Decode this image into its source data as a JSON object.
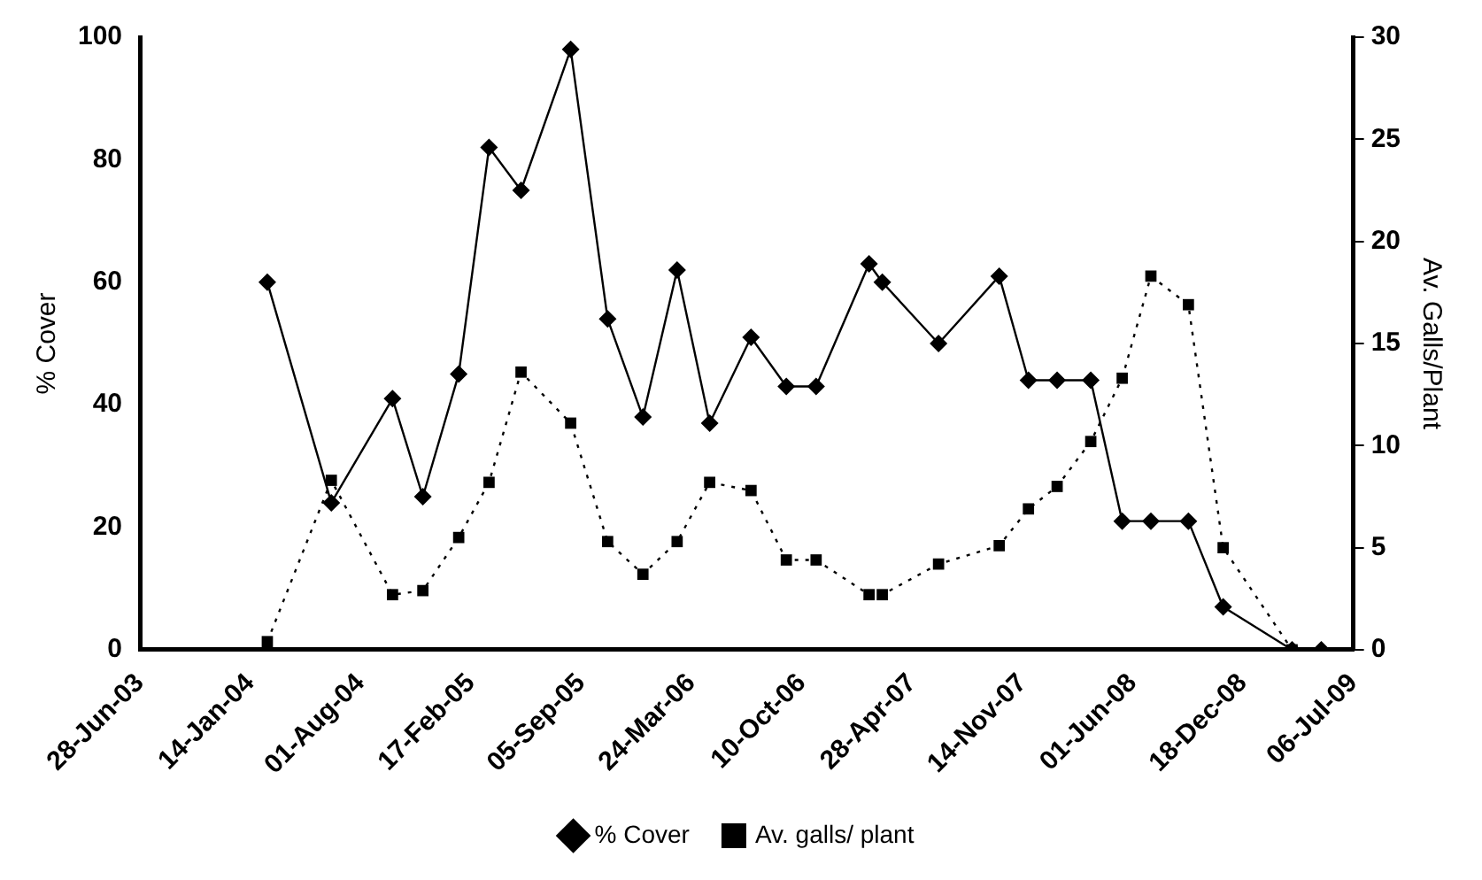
{
  "chart_data": {
    "type": "line",
    "ylabel": "% Cover",
    "y2label": "Av. Galls/Plant",
    "x": [
      "2004-02-14",
      "2004-06-09",
      "2004-09-28",
      "2004-11-22",
      "2005-01-26",
      "2005-03-22",
      "2005-05-19",
      "2005-08-17",
      "2005-10-23",
      "2005-12-26",
      "2006-02-26",
      "2006-04-26",
      "2006-07-10",
      "2006-09-12",
      "2006-11-05",
      "2007-02-09",
      "2007-03-05",
      "2007-06-15",
      "2007-10-03",
      "2007-11-25",
      "2008-01-16",
      "2008-03-17",
      "2008-05-13",
      "2008-07-04",
      "2008-09-10",
      "2008-11-12",
      "2009-03-17",
      "2009-05-09"
    ],
    "series": [
      {
        "name": "% Cover",
        "color": "#000000",
        "marker": "diamond",
        "line_style": "solid",
        "values": [
          60,
          24,
          41,
          25,
          45,
          82,
          75,
          98,
          54,
          38,
          62,
          37,
          51,
          43,
          43,
          63,
          60,
          50,
          61,
          44,
          44,
          44,
          21,
          21,
          21,
          7,
          0,
          0
        ]
      },
      {
        "name": "Av. galls/ plant",
        "color": "#000000",
        "marker": "square",
        "line_style": "dotted",
        "axis": "y2",
        "values": [
          0.4,
          8.3,
          2.7,
          2.9,
          5.5,
          8.2,
          13.6,
          11.1,
          5.3,
          3.7,
          5.3,
          8.2,
          7.8,
          4.4,
          4.4,
          2.7,
          2.7,
          4.2,
          5.1,
          6.9,
          8.0,
          10.2,
          13.3,
          18.3,
          16.9,
          5.0,
          0,
          null
        ]
      }
    ],
    "xlim": [
      "2003-06-28",
      "2009-07-06"
    ],
    "xticks": [
      {
        "value": "2003-06-28",
        "label": "28-Jun-03"
      },
      {
        "value": "2004-01-14",
        "label": "14-Jan-04"
      },
      {
        "value": "2004-08-01",
        "label": "01-Aug-04"
      },
      {
        "value": "2005-02-17",
        "label": "17-Feb-05"
      },
      {
        "value": "2005-09-05",
        "label": "05-Sep-05"
      },
      {
        "value": "2006-03-24",
        "label": "24-Mar-06"
      },
      {
        "value": "2006-10-10",
        "label": "10-Oct-06"
      },
      {
        "value": "2007-04-28",
        "label": "28-Apr-07"
      },
      {
        "value": "2007-11-14",
        "label": "14-Nov-07"
      },
      {
        "value": "2008-06-01",
        "label": "01-Jun-08"
      },
      {
        "value": "2008-12-18",
        "label": "18-Dec-08"
      },
      {
        "value": "2009-07-06",
        "label": "06-Jul-09"
      }
    ],
    "ylim": [
      0,
      100
    ],
    "yticks": [
      0,
      20,
      40,
      60,
      80,
      100
    ],
    "y2lim": [
      0,
      30
    ],
    "y2ticks": [
      0,
      5,
      10,
      15,
      20,
      25,
      30
    ],
    "grid": false,
    "legend": "bottom"
  }
}
